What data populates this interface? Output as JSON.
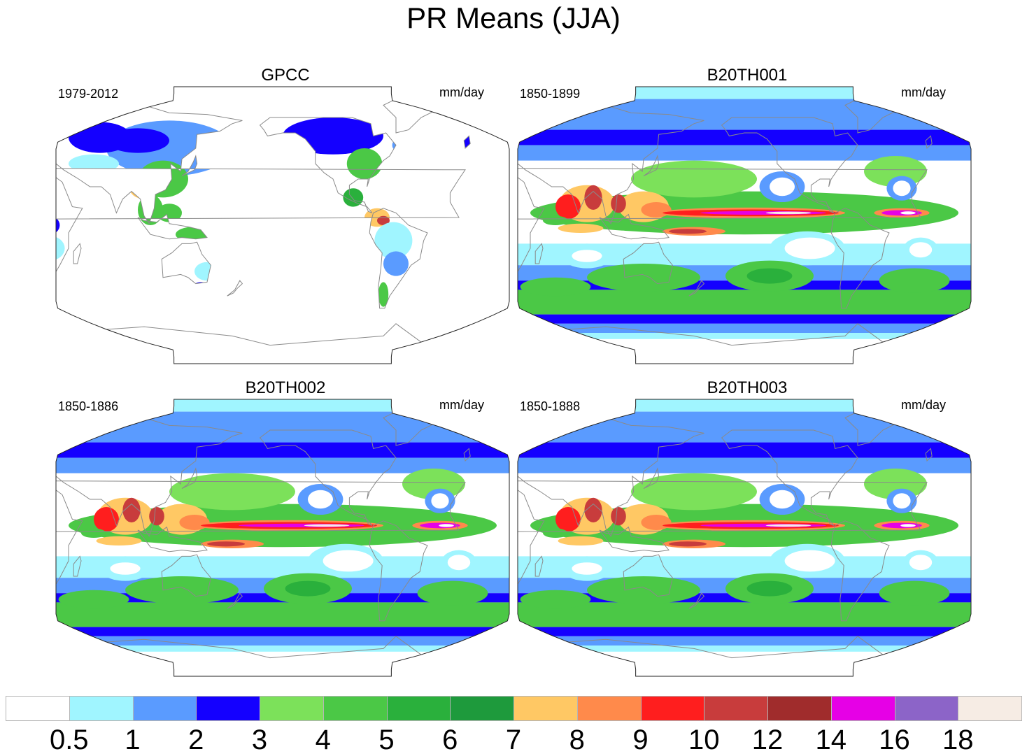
{
  "figure_title": "PR Means (JJA)",
  "panels": [
    {
      "title": "GPCC",
      "period": "1979-2012",
      "units": "mm/day",
      "kind": "obs"
    },
    {
      "title": "B20TH001",
      "period": "1850-1899",
      "units": "mm/day",
      "kind": "model"
    },
    {
      "title": "B20TH002",
      "period": "1850-1886",
      "units": "mm/day",
      "kind": "model"
    },
    {
      "title": "B20TH003",
      "period": "1850-1888",
      "units": "mm/day",
      "kind": "model"
    }
  ],
  "colorbar": {
    "labels": [
      "0.5",
      "1",
      "2",
      "3",
      "4",
      "5",
      "6",
      "7",
      "8",
      "9",
      "10",
      "12",
      "14",
      "16",
      "18"
    ],
    "colors": [
      "#ffffff",
      "#a0f5ff",
      "#5a9bff",
      "#1400ff",
      "#7ce15a",
      "#4bc846",
      "#2ab03c",
      "#1e9a3c",
      "#ffc864",
      "#ff8a4b",
      "#ff1e1e",
      "#c83c3c",
      "#a02c2c",
      "#e600e6",
      "#8c64c8",
      "#f6ece4"
    ]
  }
}
